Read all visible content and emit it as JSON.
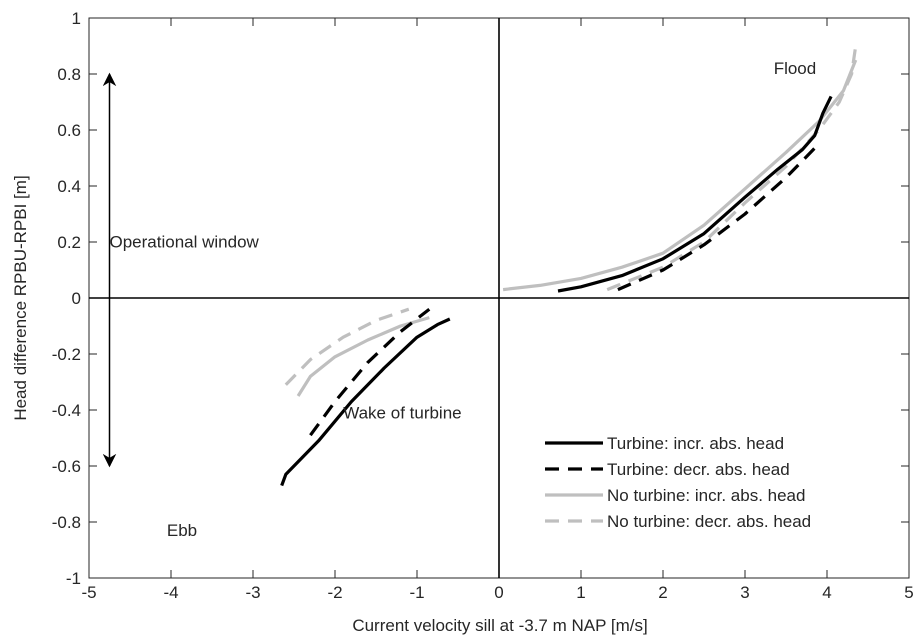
{
  "chart_data": {
    "type": "line",
    "title": "",
    "xlabel": "Current velocity sill at -3.7 m NAP [m/s]",
    "ylabel": "Head difference RPBU-RPBI [m]",
    "xlim": [
      -5,
      5
    ],
    "ylim": [
      -1,
      1
    ],
    "xticks": [
      -5,
      -4,
      -3,
      -2,
      -1,
      0,
      1,
      2,
      3,
      4,
      5
    ],
    "yticks": [
      -1,
      -0.8,
      -0.6,
      -0.4,
      -0.2,
      0,
      0.2,
      0.4,
      0.6,
      0.8,
      1
    ],
    "grid": false,
    "legend_position": "bottom-right",
    "series": [
      {
        "name": "Turbine: incr. abs. head",
        "color": "#000000",
        "style": "solid",
        "segments": [
          [
            [
              0.72,
              0.025
            ],
            [
              1.0,
              0.04
            ],
            [
              1.5,
              0.08
            ],
            [
              2.0,
              0.14
            ],
            [
              2.5,
              0.23
            ],
            [
              3.0,
              0.36
            ],
            [
              3.4,
              0.46
            ],
            [
              3.7,
              0.53
            ],
            [
              3.85,
              0.58
            ],
            [
              3.95,
              0.66
            ],
            [
              4.05,
              0.72
            ]
          ],
          [
            [
              -2.65,
              -0.67
            ],
            [
              -2.6,
              -0.63
            ],
            [
              -2.2,
              -0.51
            ],
            [
              -1.8,
              -0.37
            ],
            [
              -1.4,
              -0.25
            ],
            [
              -1.0,
              -0.14
            ],
            [
              -0.75,
              -0.095
            ],
            [
              -0.6,
              -0.075
            ]
          ]
        ]
      },
      {
        "name": "Turbine: decr. abs. head",
        "color": "#000000",
        "style": "dashed",
        "segments": [
          [
            [
              1.45,
              0.03
            ],
            [
              2.0,
              0.1
            ],
            [
              2.5,
              0.19
            ],
            [
              3.0,
              0.3
            ],
            [
              3.5,
              0.43
            ],
            [
              3.9,
              0.55
            ]
          ],
          [
            [
              -2.3,
              -0.49
            ],
            [
              -2.0,
              -0.37
            ],
            [
              -1.6,
              -0.23
            ],
            [
              -1.2,
              -0.12
            ],
            [
              -0.85,
              -0.04
            ]
          ]
        ]
      },
      {
        "name": "No turbine: incr. abs. head",
        "color": "#bfbfbf",
        "style": "solid",
        "segments": [
          [
            [
              0.05,
              0.03
            ],
            [
              0.5,
              0.045
            ],
            [
              1.0,
              0.07
            ],
            [
              1.5,
              0.11
            ],
            [
              2.0,
              0.16
            ],
            [
              2.5,
              0.26
            ],
            [
              3.0,
              0.39
            ],
            [
              3.5,
              0.52
            ],
            [
              3.9,
              0.63
            ],
            [
              4.2,
              0.74
            ],
            [
              4.35,
              0.85
            ]
          ],
          [
            [
              -2.45,
              -0.35
            ],
            [
              -2.3,
              -0.28
            ],
            [
              -2.0,
              -0.21
            ],
            [
              -1.6,
              -0.15
            ],
            [
              -1.2,
              -0.1
            ],
            [
              -0.85,
              -0.07
            ]
          ]
        ]
      },
      {
        "name": "No turbine: decr. abs. head",
        "color": "#bfbfbf",
        "style": "dashed",
        "segments": [
          [
            [
              1.32,
              0.03
            ],
            [
              2.0,
              0.11
            ],
            [
              2.5,
              0.2
            ],
            [
              3.0,
              0.34
            ],
            [
              3.5,
              0.47
            ],
            [
              3.9,
              0.6
            ],
            [
              4.15,
              0.7
            ],
            [
              4.3,
              0.8
            ],
            [
              4.35,
              0.9
            ]
          ],
          [
            [
              -2.6,
              -0.31
            ],
            [
              -2.3,
              -0.22
            ],
            [
              -1.9,
              -0.14
            ],
            [
              -1.5,
              -0.08
            ],
            [
              -1.1,
              -0.04
            ]
          ]
        ]
      }
    ],
    "annotations": [
      {
        "text": "Flood",
        "x": 3.35,
        "y": 0.8
      },
      {
        "text": "Operational window",
        "x": -4.75,
        "y": 0.18
      },
      {
        "text": "Wake of turbine",
        "x": -1.9,
        "y": -0.43
      },
      {
        "text": "Ebb",
        "x": -4.05,
        "y": -0.85
      }
    ],
    "double_arrow": {
      "x": -4.75,
      "y_from": 0.8,
      "y_to": -0.6
    }
  }
}
